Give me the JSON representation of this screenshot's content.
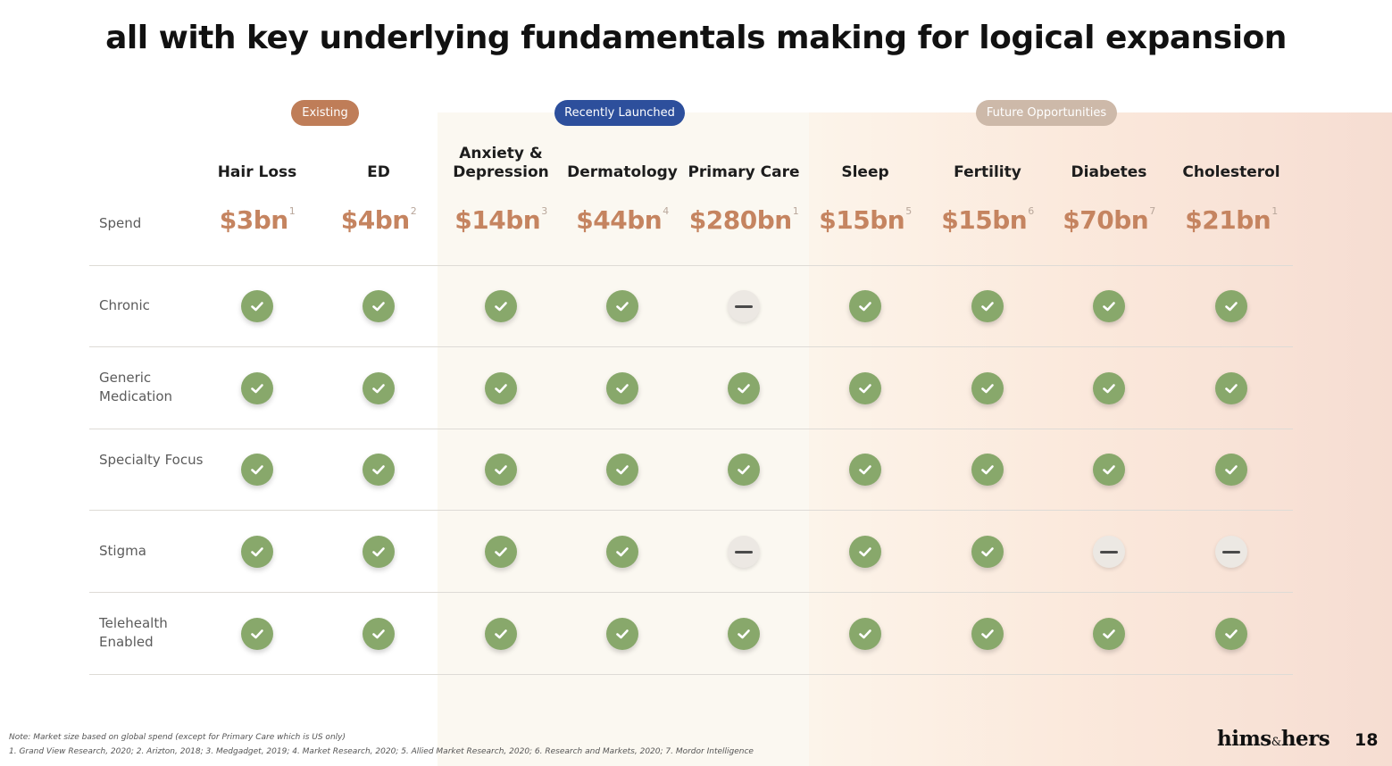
{
  "title": "all with key underlying fundamentals making for logical expansion",
  "groups": {
    "existing": "Existing",
    "launched": "Recently Launched",
    "future": "Future Opportunities"
  },
  "colors": {
    "check": "#88a86b",
    "spend": "#c58460",
    "existing": "#bf7d58",
    "launched": "#2d4f9c",
    "future": "#cdb9a9"
  },
  "columns": [
    {
      "header": "Hair Loss",
      "spend": "$3bn",
      "footnote": "1",
      "group": "existing"
    },
    {
      "header": "ED",
      "spend": "$4bn",
      "footnote": "2",
      "group": "existing"
    },
    {
      "header": "Anxiety & Depression",
      "spend": "$14bn",
      "footnote": "3",
      "group": "launched"
    },
    {
      "header": "Dermatology",
      "spend": "$44bn",
      "footnote": "4",
      "group": "launched"
    },
    {
      "header": "Primary Care",
      "spend": "$280bn",
      "footnote": "1",
      "group": "launched"
    },
    {
      "header": "Sleep",
      "spend": "$15bn",
      "footnote": "5",
      "group": "future"
    },
    {
      "header": "Fertility",
      "spend": "$15bn",
      "footnote": "6",
      "group": "future"
    },
    {
      "header": "Diabetes",
      "spend": "$70bn",
      "footnote": "7",
      "group": "future"
    },
    {
      "header": "Cholesterol",
      "spend": "$21bn",
      "footnote": "1",
      "group": "future"
    }
  ],
  "spend_label": "Spend",
  "rows": [
    {
      "label": "Chronic",
      "values": [
        "check",
        "check",
        "check",
        "check",
        "dash",
        "check",
        "check",
        "check",
        "check"
      ]
    },
    {
      "label": "Generic Medication",
      "values": [
        "check",
        "check",
        "check",
        "check",
        "check",
        "check",
        "check",
        "check",
        "check"
      ]
    },
    {
      "label": "Specialty Focus",
      "values": [
        "check",
        "check",
        "check",
        "check",
        "check",
        "check",
        "check",
        "check",
        "check"
      ]
    },
    {
      "label": "Stigma",
      "values": [
        "check",
        "check",
        "check",
        "check",
        "dash",
        "check",
        "check",
        "dash",
        "dash"
      ]
    },
    {
      "label": "Telehealth Enabled",
      "values": [
        "check",
        "check",
        "check",
        "check",
        "check",
        "check",
        "check",
        "check",
        "check"
      ]
    }
  ],
  "notes": {
    "note": "Note: Market size based on global spend (except for Primary Care which is US only)",
    "sources": "1. Grand View Research, 2020; 2. Arizton, 2018; 3. Medgadget, 2019; 4. Market Research, 2020; 5. Allied Market Research, 2020; 6. Research and Markets, 2020; 7. Mordor Intelligence"
  },
  "logo": {
    "left": "hims",
    "amp": "&",
    "right": "hers"
  },
  "page_number": "18"
}
